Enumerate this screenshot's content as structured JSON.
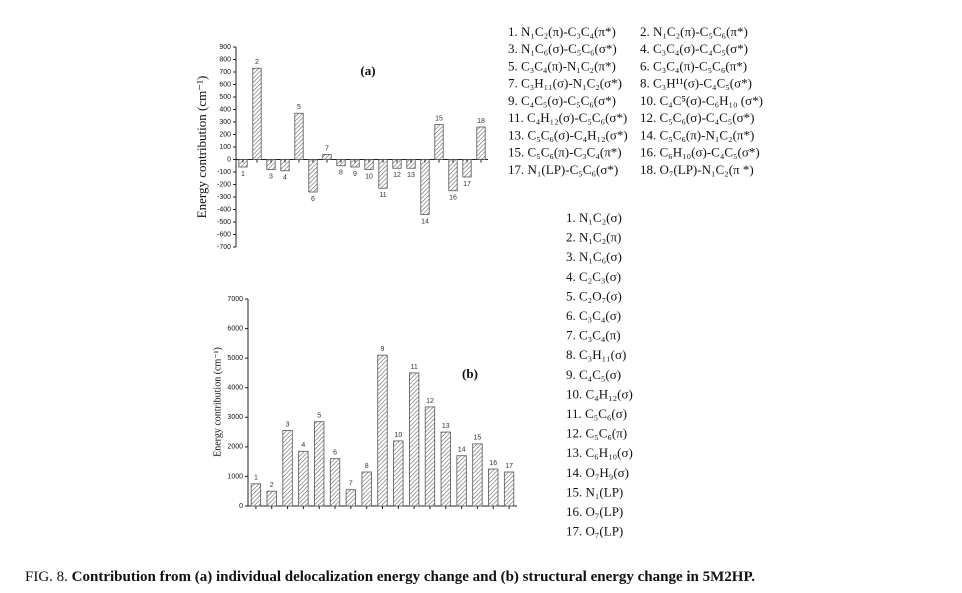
{
  "chart_data": [
    {
      "type": "bar",
      "annotation": "(a)",
      "y_label": "Energy contribution (cm⁻¹)",
      "color": "#555555",
      "categories": [
        "1",
        "2",
        "3",
        "4",
        "5",
        "6",
        "7",
        "8",
        "9",
        "10",
        "11",
        "12",
        "13",
        "14",
        "15",
        "16",
        "17",
        "18"
      ],
      "values": [
        -60,
        730,
        -80,
        -90,
        370,
        -260,
        40,
        -50,
        -60,
        -80,
        -230,
        -70,
        -70,
        -440,
        280,
        -250,
        -140,
        260
      ],
      "ylim": [
        -700,
        900
      ],
      "yticks": [
        -700,
        -600,
        -500,
        -400,
        -300,
        -200,
        -100,
        0,
        100,
        200,
        300,
        400,
        500,
        600,
        700,
        800,
        900
      ],
      "legend_items": [
        "1. N₁C₂(π)-C₃C₄(π*)",
        "2. N₁C₂(π)-C₅C₆(π*)",
        "3. N₁C₆(σ)-C₅C₆(σ*)",
        "4. C₃C₄(σ)-C₄C₅(σ*)",
        "5. C₃C₄(π)-N₁C₂(π*)",
        "6. C₃C₄(π)-C₅C₆(π*)",
        "7. C₃H₁₁(σ)-N₁C₂(σ*)",
        "8. C₃H¹¹(σ)-C₄C₅(σ*)",
        "9. C₄C₅(σ)-C₅C₆(σ*)",
        "10. C₄C⁵(σ)-C₆H₁₀ (σ*)",
        "11. C₄H₁₂(σ)-C₅C₆(σ*)",
        "12. C₅C₆(σ)-C₄C₅(σ*)",
        "13. C₅C₆(σ)-C₄H₁₂(σ*)",
        "14. C₅C₆(π)-N₁C₂(π*)",
        "15. C₅C₆(π)-C₃C₄(π*)",
        "16. C₆H₁₀(σ)-C₄C₅(σ*)",
        "17. N₁(LP)-C₅C₆(σ*)",
        "18. O₇(LP)-N₁C₂(π *)"
      ]
    },
    {
      "type": "bar",
      "annotation": "(b)",
      "y_label": "Energy contribution (cm⁻¹)",
      "color": "#555555",
      "categories": [
        "1",
        "2",
        "3",
        "4",
        "5",
        "6",
        "7",
        "8",
        "9",
        "10",
        "11",
        "12",
        "13",
        "14",
        "15",
        "16",
        "17"
      ],
      "values": [
        750,
        500,
        2550,
        1850,
        2850,
        1600,
        550,
        1150,
        5100,
        2200,
        4500,
        3350,
        2500,
        1700,
        2100,
        1250,
        1150
      ],
      "ylim": [
        0,
        7000
      ],
      "yticks": [
        0,
        1000,
        2000,
        3000,
        4000,
        5000,
        6000,
        7000
      ],
      "legend_items": [
        "1. N₁C₂(σ)",
        "2. N₁C₂(π)",
        "3. N₁C₆(σ)",
        "4. C₂C₃(σ)",
        "5. C₂O₇(σ)",
        "6. C₃C₄(σ)",
        "7. C₃C₄(π)",
        "8. C₃H₁₁(σ)",
        "9. C₄C₅(σ)",
        "10. C₄H₁₂(σ)",
        "11. C₅C₆(σ)",
        "12. C₅C₆(π)",
        "13. C₆H₁₀(σ)",
        "14. O₇H₉(σ)",
        "15. N₁(LP)",
        "16. O₇(LP)",
        "17. O₇(LP)"
      ]
    }
  ],
  "caption": {
    "label": "FIG. 8.",
    "text": "Contribution from (a) individual delocalization energy change and (b) structural energy change in 5M2HP."
  }
}
